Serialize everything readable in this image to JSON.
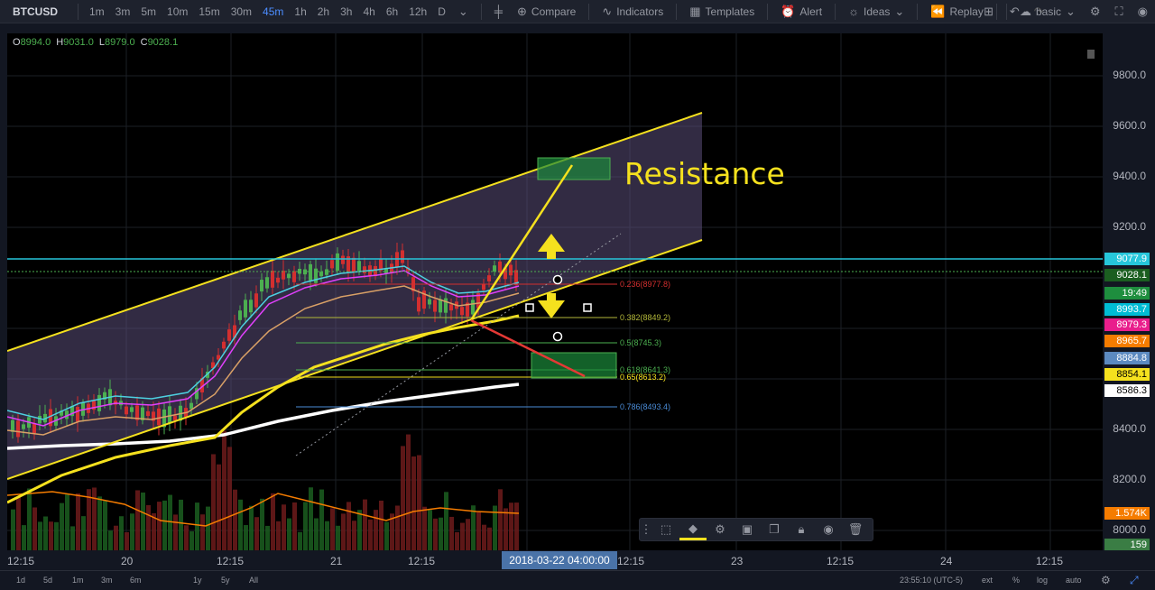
{
  "toolbar": {
    "symbol": "BTCUSD",
    "timeframes": [
      "1m",
      "3m",
      "5m",
      "10m",
      "15m",
      "30m",
      "45m",
      "1h",
      "2h",
      "3h",
      "4h",
      "6h",
      "12h",
      "D"
    ],
    "active_timeframe": "45m",
    "compare_label": "Compare",
    "indicators_label": "Indicators",
    "templates_label": "Templates",
    "alert_label": "Alert",
    "ideas_label": "Ideas",
    "replay_label": "Replay",
    "layout_label": "basic"
  },
  "ohlc": {
    "o_label": "O",
    "o": "8994.0",
    "h_label": "H",
    "h": "9031.0",
    "l_label": "L",
    "l": "8979.0",
    "c_label": "C",
    "c": "9028.1"
  },
  "annotation": {
    "resistance": "Resistance"
  },
  "fib_levels": [
    {
      "label": "0.236(8977.8)",
      "color": "#d32f2f"
    },
    {
      "label": "0.382(8849.2)",
      "color": "#b3b83a"
    },
    {
      "label": "0.5(8745.3)",
      "color": "#4caf50"
    },
    {
      "label": "0.618(8641.3)",
      "color": "#4caf50"
    },
    {
      "label": "0.65(8613.2)",
      "color": "#f5e11e"
    },
    {
      "label": "0.786(8493.4)",
      "color": "#4a8bd6"
    }
  ],
  "price_axis": {
    "ticks": [
      "9800.0",
      "9600.0",
      "9400.0",
      "9200.0",
      "8400.0",
      "8200.0",
      "8000.0"
    ],
    "labels": [
      {
        "text": "9077.9",
        "bg": "#26c6da"
      },
      {
        "text": "9028.1",
        "bg": "#1b5e20"
      },
      {
        "text": "19:49",
        "bg": "#1e8e3e"
      },
      {
        "text": "8993.7",
        "bg": "#00bcd4"
      },
      {
        "text": "8979.3",
        "bg": "#e91e8c"
      },
      {
        "text": "8965.7",
        "bg": "#f57c00"
      },
      {
        "text": "8884.8",
        "bg": "#5c8ac0"
      },
      {
        "text": "8854.1",
        "bg": "#f5e11e"
      },
      {
        "text": "8586.3",
        "bg": "#ffffff"
      },
      {
        "text": "1.574K",
        "bg": "#f57c00"
      },
      {
        "text": "159",
        "bg": "#3a7d44"
      }
    ]
  },
  "time_axis": {
    "ticks": [
      "12:15",
      "20",
      "12:15",
      "21",
      "12:15",
      "12:15",
      "23",
      "12:15",
      "24",
      "12:15"
    ],
    "cursor": "2018-03-22 04:00:00"
  },
  "bottom_bar": {
    "ranges": [
      "1d",
      "5d",
      "1m",
      "3m",
      "6m",
      "1y",
      "5y",
      "All"
    ],
    "clock": "23:55:10 (UTC-5)",
    "ext": "ext",
    "pct": "%",
    "log": "log",
    "auto": "auto"
  },
  "colors": {
    "up": "#4caf50",
    "down": "#d32f2f",
    "channel": "#f5e11e",
    "channel_fill": "#5b4f7a",
    "horizontal": "#26c6da"
  }
}
